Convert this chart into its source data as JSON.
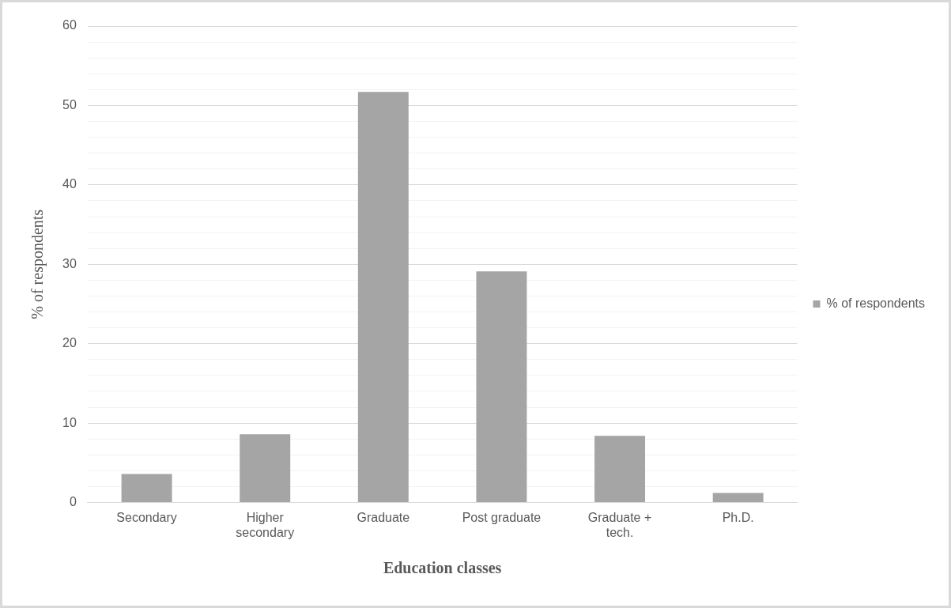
{
  "chart_data": {
    "type": "bar",
    "xlabel": "Education classes",
    "ylabel": "% of respondents",
    "categories": [
      "Secondary",
      "Higher secondary",
      "Graduate",
      "Post graduate",
      "Graduate + tech.",
      "Ph.D."
    ],
    "series": [
      {
        "name": "% of respondents",
        "color": "#a5a5a5",
        "values": [
          3.6,
          8.6,
          51.7,
          29.1,
          8.4,
          1.2
        ]
      }
    ],
    "ylim": [
      0,
      60
    ],
    "yticks": [
      0,
      {
        "value": 2,
        "label": null
      },
      {
        "value": 4,
        "label": null
      },
      {
        "value": 6,
        "label": null
      },
      {
        "value": 8,
        "label": null
      },
      10,
      {
        "value": 12,
        "label": null
      },
      {
        "value": 14,
        "label": null
      },
      {
        "value": 16,
        "label": null
      },
      {
        "value": 18,
        "label": null
      },
      20,
      {
        "value": 22,
        "label": null
      },
      {
        "value": 24,
        "label": null
      },
      {
        "value": 26,
        "label": null
      },
      {
        "value": 28,
        "label": null
      },
      30,
      {
        "value": 32,
        "label": null
      },
      {
        "value": 34,
        "label": null
      },
      {
        "value": 36,
        "label": null
      },
      {
        "value": 38,
        "label": null
      },
      40,
      {
        "value": 42,
        "label": null
      },
      {
        "value": 44,
        "label": null
      },
      {
        "value": 46,
        "label": null
      },
      {
        "value": 48,
        "label": null
      },
      50,
      {
        "value": 52,
        "label": null
      },
      {
        "value": 54,
        "label": null
      },
      {
        "value": 56,
        "label": null
      },
      {
        "value": 58,
        "label": null
      },
      60
    ],
    "grid": "y",
    "legend": "right"
  }
}
